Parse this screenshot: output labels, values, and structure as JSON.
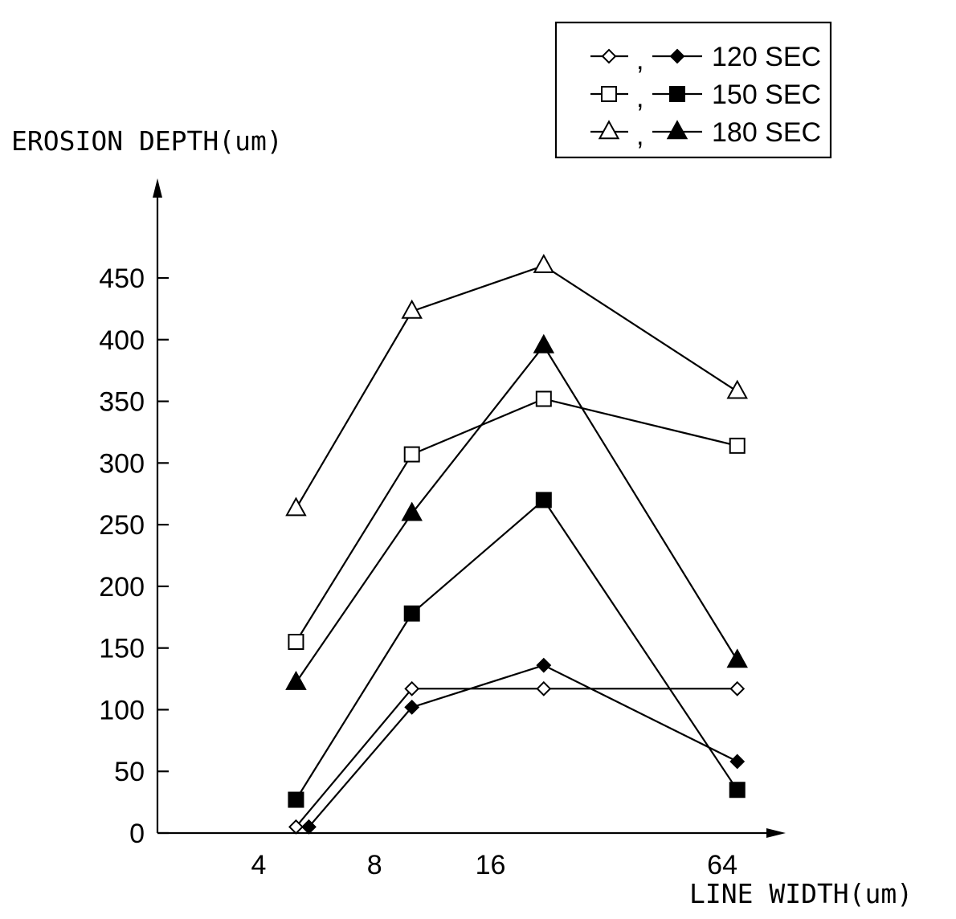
{
  "chart_data": {
    "type": "line",
    "ylabel": "EROSION DEPTH(um)",
    "xlabel": "LINE WIDTH(um)",
    "ylim": [
      0,
      450
    ],
    "y_ticks": [
      0,
      50,
      100,
      150,
      200,
      250,
      300,
      350,
      400,
      450
    ],
    "x_ticks": [
      "4",
      "8",
      "16",
      "64"
    ],
    "legend_position": "top-right",
    "legend": [
      {
        "label": "120 SEC",
        "marker": "diamond"
      },
      {
        "label": "150 SEC",
        "marker": "square"
      },
      {
        "label": "180 SEC",
        "marker": "triangle"
      }
    ],
    "series": [
      {
        "legend_label": "120 SEC",
        "marker": "diamond",
        "fill": "open",
        "x": [
          5,
          10,
          22,
          70
        ],
        "y": [
          5,
          117,
          117,
          117
        ]
      },
      {
        "legend_label": "120 SEC",
        "marker": "diamond",
        "fill": "filled",
        "x": [
          5.4,
          10,
          22,
          70
        ],
        "y": [
          5,
          102,
          136,
          58
        ]
      },
      {
        "legend_label": "150 SEC",
        "marker": "square",
        "fill": "open",
        "x": [
          5,
          10,
          22,
          70
        ],
        "y": [
          155,
          307,
          352,
          314
        ]
      },
      {
        "legend_label": "150 SEC",
        "marker": "square",
        "fill": "filled",
        "x": [
          5,
          10,
          22,
          70
        ],
        "y": [
          27,
          178,
          270,
          35
        ]
      },
      {
        "legend_label": "180 SEC",
        "marker": "triangle",
        "fill": "open",
        "x": [
          5,
          10,
          22,
          70
        ],
        "y": [
          263,
          423,
          460,
          358
        ]
      },
      {
        "legend_label": "180 SEC",
        "marker": "triangle",
        "fill": "filled",
        "x": [
          5,
          10,
          22,
          70
        ],
        "y": [
          122,
          259,
          395,
          140
        ]
      }
    ]
  }
}
